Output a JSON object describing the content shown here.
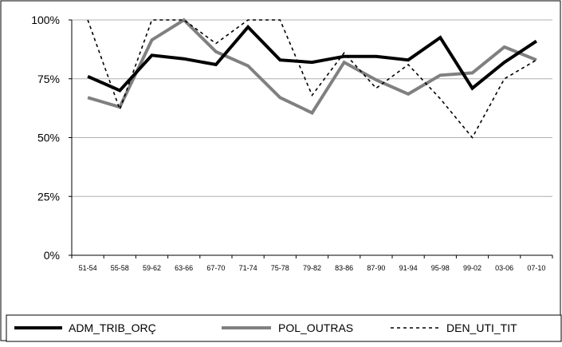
{
  "chart_data": {
    "type": "line",
    "title": "",
    "xlabel": "",
    "ylabel": "",
    "categories": [
      "51-54",
      "55-58",
      "59-62",
      "63-66",
      "67-70",
      "71-74",
      "75-78",
      "79-82",
      "83-86",
      "87-90",
      "91-94",
      "95-98",
      "99-02",
      "03-06",
      "07-10"
    ],
    "ylim": [
      0,
      1
    ],
    "y_tick_labels": [
      "0%",
      "25%",
      "50%",
      "75%",
      "100%"
    ],
    "grid": "horizontal",
    "legend_position": "bottom",
    "series": [
      {
        "name": "ADM_TRIB_ORÇ",
        "color": "#000000",
        "style": "solid-thick",
        "values": [
          0.76,
          0.7,
          0.85,
          0.835,
          0.81,
          0.97,
          0.83,
          0.82,
          0.845,
          0.845,
          0.83,
          0.925,
          0.71,
          0.82,
          0.91
        ]
      },
      {
        "name": "POL_OUTRAS",
        "color": "#808080",
        "style": "solid-thick",
        "values": [
          0.67,
          0.63,
          0.915,
          1.0,
          0.865,
          0.805,
          0.67,
          0.605,
          0.82,
          0.745,
          0.685,
          0.765,
          0.775,
          0.885,
          0.83
        ]
      },
      {
        "name": "DEN_UTI_TIT",
        "color": "#000000",
        "style": "dotted",
        "values": [
          1.0,
          0.62,
          1.0,
          1.0,
          0.9,
          1.0,
          1.0,
          0.68,
          0.86,
          0.71,
          0.81,
          0.665,
          0.5,
          0.75,
          0.83
        ]
      }
    ]
  }
}
